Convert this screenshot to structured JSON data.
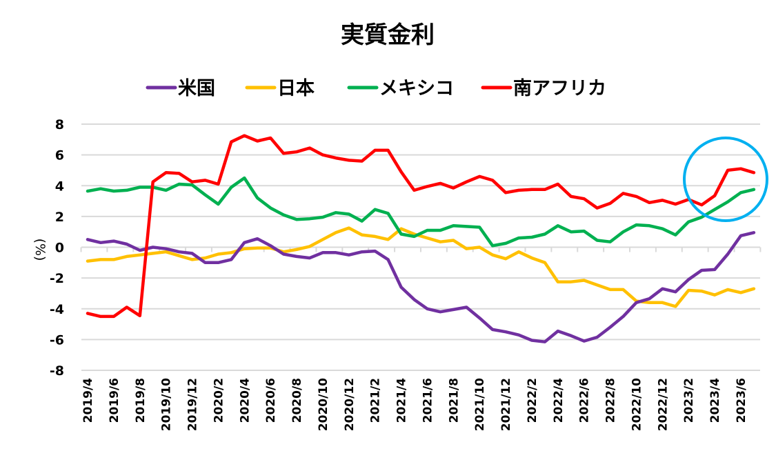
{
  "chart_data": {
    "type": "line",
    "title": "実質金利",
    "xlabel": "",
    "ylabel": "(%)",
    "ylim": [
      -8,
      8
    ],
    "yticks": [
      8,
      6,
      4,
      2,
      0,
      -2,
      -4,
      -6,
      -8
    ],
    "grid": true,
    "legend_position": "top",
    "x": [
      "2019/4",
      "2019/5",
      "2019/6",
      "2019/7",
      "2019/8",
      "2019/9",
      "2019/10",
      "2019/11",
      "2019/12",
      "2020/1",
      "2020/2",
      "2020/3",
      "2020/4",
      "2020/5",
      "2020/6",
      "2020/7",
      "2020/8",
      "2020/9",
      "2020/10",
      "2020/11",
      "2020/12",
      "2021/1",
      "2021/2",
      "2021/3",
      "2021/4",
      "2021/5",
      "2021/6",
      "2021/7",
      "2021/8",
      "2021/9",
      "2021/10",
      "2021/11",
      "2021/12",
      "2022/1",
      "2022/2",
      "2022/3",
      "2022/4",
      "2022/5",
      "2022/6",
      "2022/7",
      "2022/8",
      "2022/9",
      "2022/10",
      "2022/11",
      "2022/12",
      "2023/1",
      "2023/2",
      "2023/3",
      "2023/4",
      "2023/5",
      "2023/6",
      "2023/7"
    ],
    "xtick_labels": [
      "2019/4",
      "2019/6",
      "2019/8",
      "2019/10",
      "2019/12",
      "2020/2",
      "2020/4",
      "2020/6",
      "2020/8",
      "2020/10",
      "2020/12",
      "2021/2",
      "2021/4",
      "2021/6",
      "2021/8",
      "2021/10",
      "2021/12",
      "2022/2",
      "2022/4",
      "2022/6",
      "2022/8",
      "2022/10",
      "2022/12",
      "2023/2",
      "2023/4",
      "2023/6"
    ],
    "series": [
      {
        "name": "米国",
        "color": "#7030a0",
        "values": [
          0.5,
          0.3,
          0.4,
          0.2,
          -0.2,
          0.0,
          -0.1,
          -0.3,
          -0.4,
          -1.0,
          -1.0,
          -0.8,
          0.3,
          0.55,
          0.1,
          -0.45,
          -0.6,
          -0.7,
          -0.35,
          -0.35,
          -0.5,
          -0.3,
          -0.25,
          -0.8,
          -2.6,
          -3.4,
          -4.0,
          -4.2,
          -4.05,
          -3.9,
          -4.6,
          -5.35,
          -5.5,
          -5.7,
          -6.05,
          -6.15,
          -5.45,
          -5.75,
          -6.1,
          -5.85,
          -5.2,
          -4.5,
          -3.6,
          -3.35,
          -2.7,
          -2.9,
          -2.1,
          -1.5,
          -1.45,
          -0.45,
          0.75,
          0.95
        ]
      },
      {
        "name": "日本",
        "color": "#ffc000",
        "values": [
          -0.9,
          -0.8,
          -0.8,
          -0.6,
          -0.5,
          -0.4,
          -0.3,
          -0.55,
          -0.8,
          -0.7,
          -0.45,
          -0.35,
          -0.1,
          -0.05,
          -0.05,
          -0.3,
          -0.15,
          0.05,
          0.5,
          0.95,
          1.25,
          0.8,
          0.7,
          0.5,
          1.2,
          0.85,
          0.6,
          0.35,
          0.45,
          -0.1,
          0.0,
          -0.5,
          -0.75,
          -0.3,
          -0.7,
          -1.0,
          -2.25,
          -2.25,
          -2.15,
          -2.45,
          -2.75,
          -2.75,
          -3.5,
          -3.6,
          -3.6,
          -3.85,
          -2.8,
          -2.85,
          -3.1,
          -2.75,
          -2.95,
          -2.7
        ]
      },
      {
        "name": "メキシコ",
        "color": "#00b050",
        "values": [
          3.65,
          3.8,
          3.65,
          3.7,
          3.9,
          3.9,
          3.7,
          4.1,
          4.05,
          3.4,
          2.8,
          3.9,
          4.5,
          3.2,
          2.55,
          2.1,
          1.8,
          1.85,
          1.95,
          2.25,
          2.15,
          1.7,
          2.45,
          2.2,
          0.85,
          0.7,
          1.1,
          1.1,
          1.4,
          1.35,
          1.3,
          0.1,
          0.25,
          0.6,
          0.65,
          0.85,
          1.4,
          1.0,
          1.05,
          0.45,
          0.35,
          1.0,
          1.45,
          1.4,
          1.2,
          0.8,
          1.65,
          1.95,
          2.45,
          2.95,
          3.55,
          3.75
        ]
      },
      {
        "name": "南アフリカ",
        "color": "#ff0000",
        "values": [
          -4.3,
          -4.5,
          -4.5,
          -3.9,
          -4.45,
          4.25,
          4.85,
          4.8,
          4.25,
          4.35,
          4.1,
          6.85,
          7.25,
          6.9,
          7.1,
          6.1,
          6.2,
          6.45,
          6.0,
          5.8,
          5.65,
          5.6,
          6.3,
          6.3,
          4.9,
          3.7,
          3.95,
          4.15,
          3.85,
          4.25,
          4.6,
          4.35,
          3.55,
          3.7,
          3.75,
          3.75,
          4.1,
          3.3,
          3.15,
          2.55,
          2.85,
          3.5,
          3.3,
          2.9,
          3.05,
          2.8,
          3.1,
          2.75,
          3.35,
          5.0,
          5.1,
          4.85
        ]
      }
    ],
    "annotations": [
      {
        "type": "circle",
        "color": "#00b0f0",
        "around": "南アフリカ 2023/3–2023/7"
      }
    ]
  }
}
